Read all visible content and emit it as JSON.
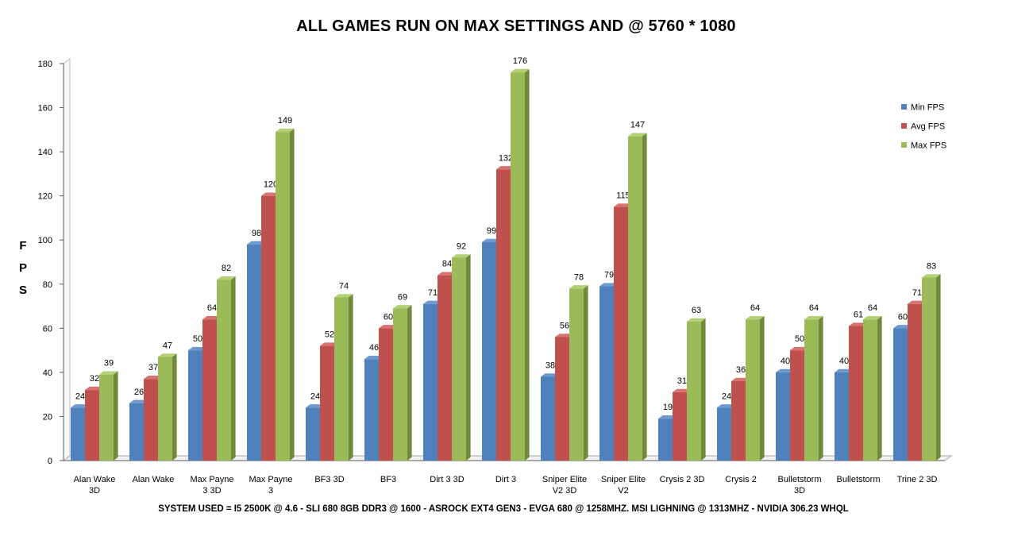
{
  "chart_data": {
    "type": "bar",
    "title": "ALL GAMES RUN ON MAX SETTINGS AND @ 5760 * 1080",
    "ylabel": "FPS",
    "xlabel": "",
    "ylim": [
      0,
      180
    ],
    "yticks": [
      0,
      20,
      40,
      60,
      80,
      100,
      120,
      140,
      160,
      180
    ],
    "grid": false,
    "legend_position": "right",
    "categories": [
      [
        "Alan Wake",
        "3D"
      ],
      [
        "Alan Wake"
      ],
      [
        "Max Payne",
        "3 3D"
      ],
      [
        "Max Payne",
        "3"
      ],
      [
        "BF3 3D"
      ],
      [
        "BF3"
      ],
      [
        "Dirt 3 3D"
      ],
      [
        "Dirt 3"
      ],
      [
        "Sniper Elite",
        "V2 3D"
      ],
      [
        "Sniper Elite",
        "V2"
      ],
      [
        "Crysis 2 3D"
      ],
      [
        "Crysis 2"
      ],
      [
        "Bulletstorm",
        "3D"
      ],
      [
        "Bulletstorm"
      ],
      [
        "Trine 2 3D"
      ]
    ],
    "series": [
      {
        "name": "Min FPS",
        "color": "#4F81BD",
        "side": "#3A6190",
        "top": "#6E9AD0",
        "values": [
          24,
          26,
          50,
          98,
          24,
          46,
          71,
          99,
          38,
          79,
          19,
          24,
          40,
          40,
          60
        ]
      },
      {
        "name": "Avg FPS",
        "color": "#C0504D",
        "side": "#8E3835",
        "top": "#D77370",
        "values": [
          32,
          37,
          64,
          120,
          52,
          60,
          84,
          132,
          56,
          115,
          31,
          36,
          50,
          61,
          71
        ]
      },
      {
        "name": "Max FPS",
        "color": "#9BBB59",
        "side": "#6E8A3A",
        "top": "#B5D178",
        "values": [
          39,
          47,
          82,
          149,
          74,
          69,
          92,
          176,
          78,
          147,
          63,
          64,
          64,
          64,
          83
        ]
      }
    ]
  },
  "footer": "SYSTEM USED = I5 2500K @ 4.6 - SLI 680 8GB DDR3 @ 1600 - ASROCK EXT4 GEN3 - EVGA 680 @ 1258MHZ. MSI LIGHNING @ 1313MHZ - NVIDIA 306.23 WHQL"
}
